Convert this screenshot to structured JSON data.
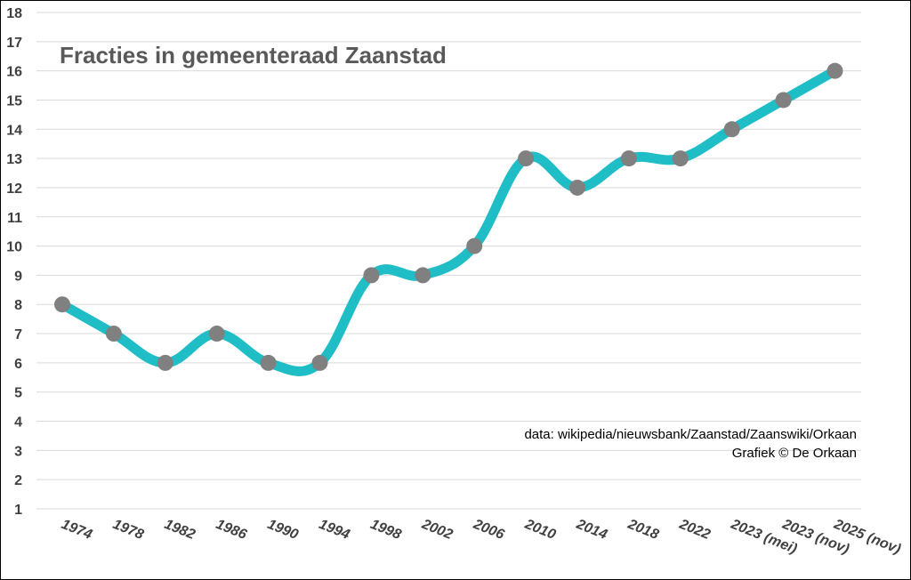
{
  "chart_data": {
    "type": "line",
    "title": "Fracties in gemeenteraad Zaanstad",
    "xlabel": "",
    "ylabel": "",
    "categories": [
      "1974",
      "1978",
      "1982",
      "1986",
      "1990",
      "1994",
      "1998",
      "2002",
      "2006",
      "2010",
      "2014",
      "2018",
      "2022",
      "2023 (mei)",
      "2023 (nov)",
      "2025 (nov)"
    ],
    "series": [
      {
        "values": [
          8,
          7,
          6,
          7,
          6,
          6,
          9,
          9,
          10,
          13,
          12,
          13,
          13,
          14,
          15,
          16
        ]
      }
    ],
    "ylim": [
      1,
      18
    ],
    "yticks": [
      1,
      2,
      3,
      4,
      5,
      6,
      7,
      8,
      9,
      10,
      11,
      12,
      13,
      14,
      15,
      16,
      17,
      18
    ],
    "grid": true,
    "smooth": true,
    "legend": "none",
    "colors": {
      "line": "#1FBDC6",
      "marker": "#808080",
      "grid": "#D9D9D9",
      "axis_text": "#404040",
      "title": "#595959"
    },
    "annotations": [
      "data: wikipedia/nieuwsbank/Zaanstad/Zaanswiki/Orkaan",
      "Grafiek © De Orkaan"
    ]
  }
}
